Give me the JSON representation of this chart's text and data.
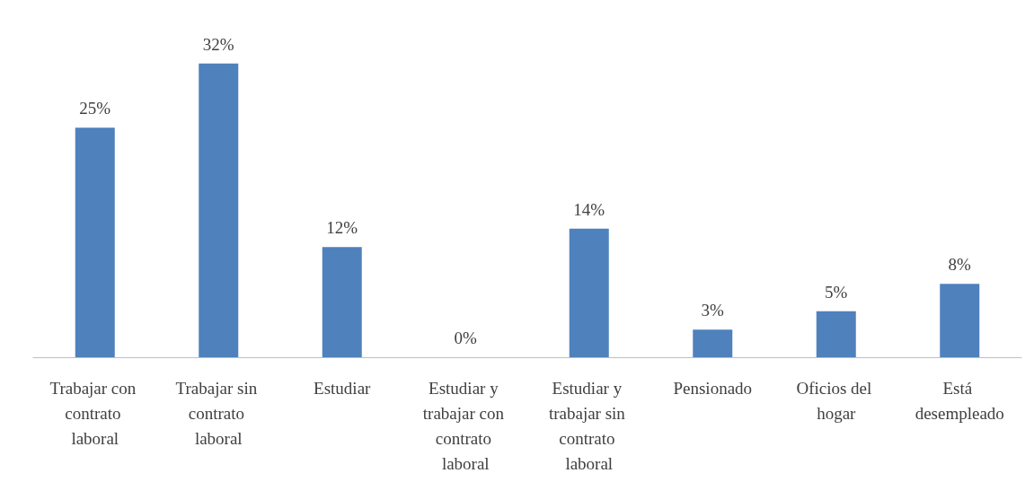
{
  "chart_data": {
    "type": "bar",
    "categories": [
      "Trabajar con contrato laboral",
      "Trabajar sin contrato laboral",
      "Estudiar",
      "Estudiar y trabajar con contrato laboral",
      "Estudiar y trabajar sin contrato laboral",
      "Pensionado",
      "Oficios del hogar",
      "Está desempleado"
    ],
    "values": [
      25,
      32,
      12,
      0,
      14,
      3,
      5,
      8
    ],
    "value_labels": [
      "25%",
      "32%",
      "12%",
      "0%",
      "14%",
      "3%",
      "5%",
      "8%"
    ],
    "color": "#4f81bd",
    "grid": false
  }
}
